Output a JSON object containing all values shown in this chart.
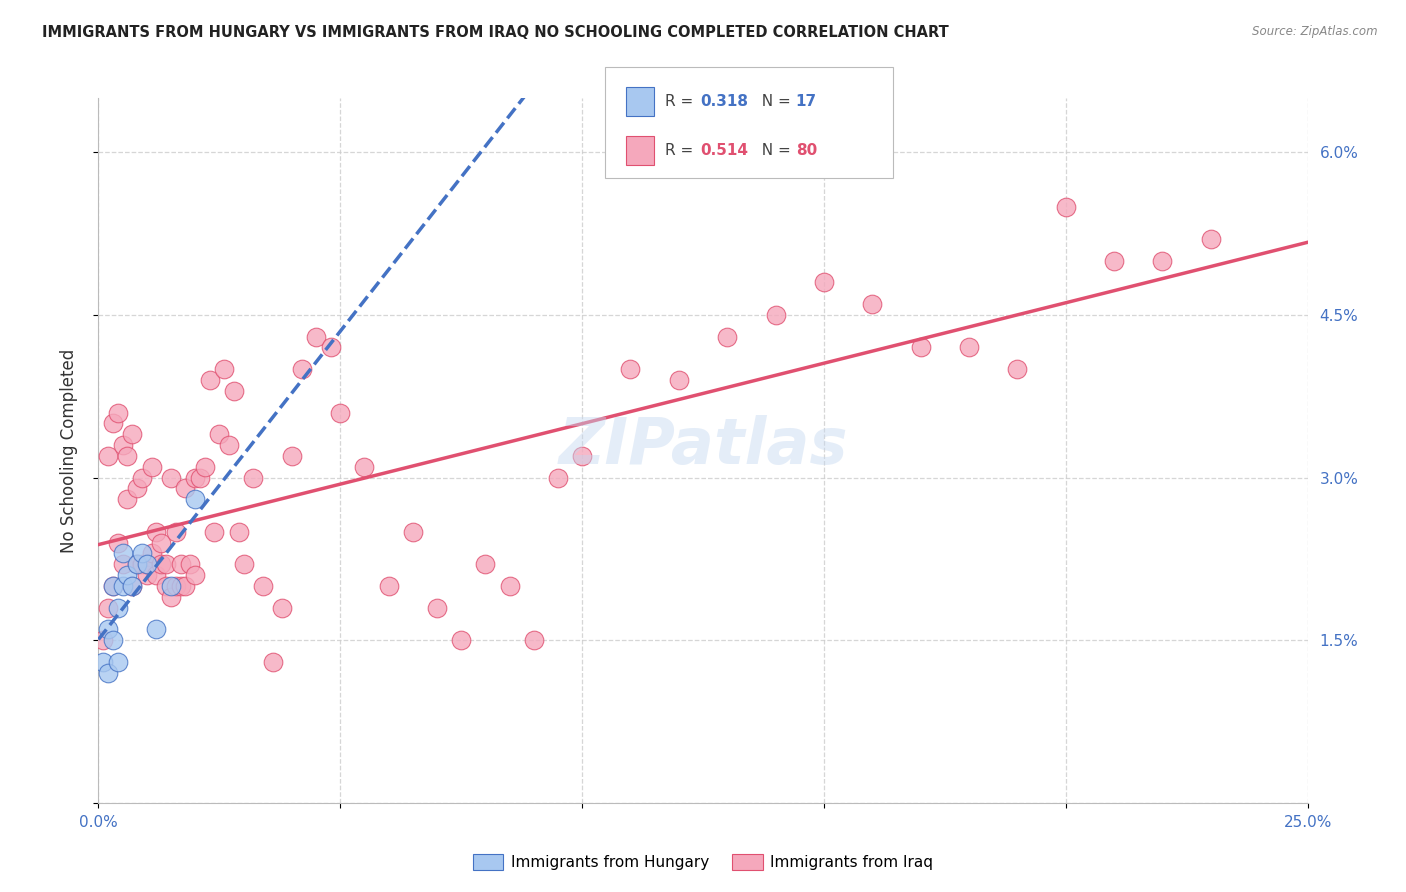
{
  "title": "IMMIGRANTS FROM HUNGARY VS IMMIGRANTS FROM IRAQ NO SCHOOLING COMPLETED CORRELATION CHART",
  "source": "Source: ZipAtlas.com",
  "ylabel": "No Schooling Completed",
  "xlim": [
    0.0,
    0.25
  ],
  "ylim": [
    0.0,
    0.065
  ],
  "xticks": [
    0.0,
    0.05,
    0.1,
    0.15,
    0.2,
    0.25
  ],
  "yticks": [
    0.0,
    0.015,
    0.03,
    0.045,
    0.06
  ],
  "color_hungary": "#A8C8F0",
  "color_iraq": "#F5A8BC",
  "line_color_hungary": "#4472C4",
  "line_color_iraq": "#E05070",
  "hungary_x": [
    0.001,
    0.002,
    0.002,
    0.003,
    0.003,
    0.004,
    0.004,
    0.005,
    0.005,
    0.006,
    0.007,
    0.008,
    0.009,
    0.01,
    0.012,
    0.015,
    0.02
  ],
  "hungary_y": [
    0.013,
    0.012,
    0.016,
    0.015,
    0.02,
    0.013,
    0.018,
    0.02,
    0.023,
    0.021,
    0.02,
    0.022,
    0.023,
    0.022,
    0.016,
    0.02,
    0.028
  ],
  "iraq_x": [
    0.001,
    0.002,
    0.002,
    0.003,
    0.003,
    0.004,
    0.004,
    0.005,
    0.005,
    0.006,
    0.006,
    0.007,
    0.007,
    0.008,
    0.008,
    0.009,
    0.009,
    0.01,
    0.01,
    0.011,
    0.011,
    0.012,
    0.012,
    0.013,
    0.013,
    0.014,
    0.014,
    0.015,
    0.015,
    0.016,
    0.016,
    0.017,
    0.017,
    0.018,
    0.018,
    0.019,
    0.02,
    0.02,
    0.021,
    0.022,
    0.023,
    0.024,
    0.025,
    0.026,
    0.027,
    0.028,
    0.029,
    0.03,
    0.032,
    0.034,
    0.036,
    0.038,
    0.04,
    0.042,
    0.045,
    0.048,
    0.05,
    0.055,
    0.06,
    0.065,
    0.07,
    0.075,
    0.08,
    0.085,
    0.09,
    0.095,
    0.1,
    0.11,
    0.12,
    0.13,
    0.14,
    0.15,
    0.16,
    0.17,
    0.18,
    0.19,
    0.2,
    0.21,
    0.22,
    0.23
  ],
  "iraq_y": [
    0.015,
    0.018,
    0.032,
    0.02,
    0.035,
    0.024,
    0.036,
    0.022,
    0.033,
    0.028,
    0.032,
    0.02,
    0.034,
    0.022,
    0.029,
    0.022,
    0.03,
    0.021,
    0.022,
    0.023,
    0.031,
    0.021,
    0.025,
    0.022,
    0.024,
    0.02,
    0.022,
    0.019,
    0.03,
    0.02,
    0.025,
    0.02,
    0.022,
    0.02,
    0.029,
    0.022,
    0.021,
    0.03,
    0.03,
    0.031,
    0.039,
    0.025,
    0.034,
    0.04,
    0.033,
    0.038,
    0.025,
    0.022,
    0.03,
    0.02,
    0.013,
    0.018,
    0.032,
    0.04,
    0.043,
    0.042,
    0.036,
    0.031,
    0.02,
    0.025,
    0.018,
    0.015,
    0.022,
    0.02,
    0.015,
    0.03,
    0.032,
    0.04,
    0.039,
    0.043,
    0.045,
    0.048,
    0.046,
    0.042,
    0.042,
    0.04,
    0.055,
    0.05,
    0.05,
    0.052
  ],
  "watermark": "ZIPatlas",
  "legend_r1_val": "0.318",
  "legend_n1_val": "17",
  "legend_r2_val": "0.514",
  "legend_n2_val": "80"
}
